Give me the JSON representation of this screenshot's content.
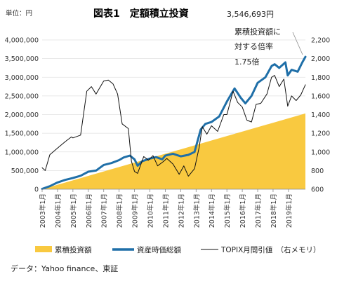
{
  "header": {
    "unit_label": "単位：円",
    "title": "図表1　定額積立投資"
  },
  "annotations": {
    "final_value": "3,546,693円",
    "line1": "累積投資額に",
    "line2": "対する倍率",
    "multiple": "1.75倍"
  },
  "legend": [
    {
      "label": "累積投資額",
      "color": "#F9C940",
      "kind": "area"
    },
    {
      "label": "資産時価総額",
      "color": "#1F6FA8",
      "kind": "thick-line"
    },
    {
      "label": "TOPIX月間引値　（右メモリ）",
      "color": "#111111",
      "kind": "thin-line"
    }
  ],
  "source": "データ：Yahoo finance、東証",
  "chart_data": {
    "type": "line",
    "x": [
      "2003年1月",
      "2004年1月",
      "2005年1月",
      "2006年1月",
      "2007年1月",
      "2008年1月",
      "2009年1月",
      "2010年1月",
      "2011年1月",
      "2012年1月",
      "2013年1月",
      "2014年1月",
      "2015年1月",
      "2016年1月",
      "2017年1月",
      "2018年1月",
      "2019年1月"
    ],
    "x_range": [
      2003.0,
      2020.1
    ],
    "ylim_left": [
      0,
      4000000
    ],
    "yticks_left": [
      "0",
      "500,000",
      "1,000,000",
      "1,500,000",
      "2,000,000",
      "2,500,000",
      "3,000,000",
      "3,500,000",
      "4,000,000"
    ],
    "ylim_right": [
      600,
      2200
    ],
    "yticks_right": [
      "600",
      "800",
      "1,000",
      "1,200",
      "1,400",
      "1,600",
      "1,800",
      "2,000",
      "2,200"
    ],
    "series": [
      {
        "name": "累積投資額",
        "type": "area",
        "axis": "left",
        "points": [
          [
            2003.0,
            0
          ],
          [
            2020.1,
            2030000
          ]
        ]
      },
      {
        "name": "資産時価総額",
        "axis": "left",
        "points": [
          [
            2003.0,
            10000
          ],
          [
            2003.5,
            80000
          ],
          [
            2004.0,
            180000
          ],
          [
            2004.5,
            250000
          ],
          [
            2005.0,
            300000
          ],
          [
            2005.5,
            360000
          ],
          [
            2006.0,
            470000
          ],
          [
            2006.5,
            500000
          ],
          [
            2007.0,
            650000
          ],
          [
            2007.5,
            700000
          ],
          [
            2008.0,
            780000
          ],
          [
            2008.3,
            850000
          ],
          [
            2008.7,
            900000
          ],
          [
            2009.0,
            800000
          ],
          [
            2009.2,
            630000
          ],
          [
            2009.5,
            750000
          ],
          [
            2010.0,
            820000
          ],
          [
            2010.4,
            860000
          ],
          [
            2010.8,
            800000
          ],
          [
            2011.0,
            900000
          ],
          [
            2011.5,
            950000
          ],
          [
            2012.0,
            880000
          ],
          [
            2012.5,
            920000
          ],
          [
            2012.9,
            1000000
          ],
          [
            2013.3,
            1600000
          ],
          [
            2013.6,
            1750000
          ],
          [
            2014.0,
            1800000
          ],
          [
            2014.5,
            1950000
          ],
          [
            2015.0,
            2350000
          ],
          [
            2015.5,
            2700000
          ],
          [
            2015.9,
            2450000
          ],
          [
            2016.2,
            2300000
          ],
          [
            2016.6,
            2500000
          ],
          [
            2017.0,
            2850000
          ],
          [
            2017.5,
            3000000
          ],
          [
            2017.9,
            3300000
          ],
          [
            2018.1,
            3350000
          ],
          [
            2018.4,
            3250000
          ],
          [
            2018.8,
            3400000
          ],
          [
            2018.95,
            3050000
          ],
          [
            2019.2,
            3200000
          ],
          [
            2019.6,
            3150000
          ],
          [
            2019.9,
            3400000
          ],
          [
            2020.1,
            3546693
          ]
        ]
      },
      {
        "name": "TOPIX月間引値",
        "axis": "right",
        "points": [
          [
            2003.0,
            830
          ],
          [
            2003.2,
            800
          ],
          [
            2003.5,
            970
          ],
          [
            2004.0,
            1040
          ],
          [
            2004.5,
            1110
          ],
          [
            2004.9,
            1160
          ],
          [
            2005.0,
            1150
          ],
          [
            2005.5,
            1180
          ],
          [
            2005.9,
            1650
          ],
          [
            2006.2,
            1700
          ],
          [
            2006.5,
            1620
          ],
          [
            2007.0,
            1760
          ],
          [
            2007.3,
            1770
          ],
          [
            2007.6,
            1730
          ],
          [
            2007.9,
            1620
          ],
          [
            2008.2,
            1300
          ],
          [
            2008.6,
            1250
          ],
          [
            2008.8,
            900
          ],
          [
            2009.0,
            790
          ],
          [
            2009.2,
            770
          ],
          [
            2009.6,
            950
          ],
          [
            2009.9,
            910
          ],
          [
            2010.2,
            960
          ],
          [
            2010.5,
            850
          ],
          [
            2010.9,
            900
          ],
          [
            2011.1,
            930
          ],
          [
            2011.5,
            870
          ],
          [
            2011.9,
            760
          ],
          [
            2012.2,
            850
          ],
          [
            2012.5,
            740
          ],
          [
            2012.9,
            820
          ],
          [
            2013.2,
            1050
          ],
          [
            2013.4,
            1270
          ],
          [
            2013.7,
            1190
          ],
          [
            2014.0,
            1280
          ],
          [
            2014.4,
            1220
          ],
          [
            2014.8,
            1400
          ],
          [
            2015.0,
            1400
          ],
          [
            2015.4,
            1650
          ],
          [
            2015.7,
            1530
          ],
          [
            2016.0,
            1480
          ],
          [
            2016.3,
            1340
          ],
          [
            2016.6,
            1320
          ],
          [
            2016.9,
            1510
          ],
          [
            2017.2,
            1520
          ],
          [
            2017.6,
            1620
          ],
          [
            2017.9,
            1800
          ],
          [
            2018.1,
            1820
          ],
          [
            2018.4,
            1700
          ],
          [
            2018.7,
            1780
          ],
          [
            2018.95,
            1490
          ],
          [
            2019.2,
            1600
          ],
          [
            2019.5,
            1550
          ],
          [
            2019.8,
            1610
          ],
          [
            2020.1,
            1720
          ]
        ]
      }
    ]
  }
}
